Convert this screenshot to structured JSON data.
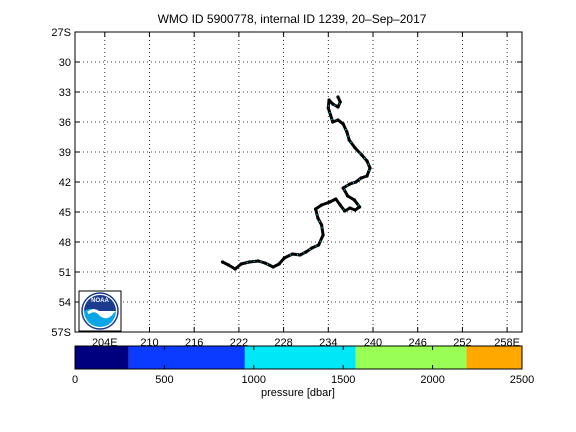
{
  "title": "WMO ID 5900778, internal ID 1239, 20–Sep–2017",
  "logo": {
    "text": "NOAA",
    "colors": {
      "ring": "#ffffff",
      "upper": "#1b3b8f",
      "lower": "#0aa6e6"
    }
  },
  "map": {
    "lon_range": [
      200,
      260
    ],
    "lat_range": [
      -57,
      -27
    ],
    "grid": true,
    "lon_ticks": [
      {
        "value": 204,
        "label": "204E"
      },
      {
        "value": 210,
        "label": "210"
      },
      {
        "value": 216,
        "label": "216"
      },
      {
        "value": 222,
        "label": "222"
      },
      {
        "value": 228,
        "label": "228"
      },
      {
        "value": 234,
        "label": "234"
      },
      {
        "value": 240,
        "label": "240"
      },
      {
        "value": 246,
        "label": "246"
      },
      {
        "value": 252,
        "label": "252"
      },
      {
        "value": 258,
        "label": "258E"
      }
    ],
    "lat_ticks": [
      {
        "value": -27,
        "label": "27S"
      },
      {
        "value": -30,
        "label": "30"
      },
      {
        "value": -33,
        "label": "33"
      },
      {
        "value": -36,
        "label": "36"
      },
      {
        "value": -39,
        "label": "39"
      },
      {
        "value": -42,
        "label": "42"
      },
      {
        "value": -45,
        "label": "45"
      },
      {
        "value": -48,
        "label": "48"
      },
      {
        "value": -51,
        "label": "51"
      },
      {
        "value": -54,
        "label": "54"
      },
      {
        "value": -57,
        "label": "57S"
      }
    ],
    "track": [
      [
        219.8,
        -50.0
      ],
      [
        220.6,
        -50.3
      ],
      [
        221.5,
        -50.7
      ],
      [
        222.3,
        -50.2
      ],
      [
        223.4,
        -50.0
      ],
      [
        224.6,
        -49.9
      ],
      [
        225.5,
        -50.1
      ],
      [
        226.6,
        -50.5
      ],
      [
        227.4,
        -50.2
      ],
      [
        228.1,
        -49.6
      ],
      [
        229.2,
        -49.2
      ],
      [
        230.2,
        -49.3
      ],
      [
        231.0,
        -49.0
      ],
      [
        231.8,
        -48.6
      ],
      [
        232.7,
        -48.3
      ],
      [
        233.3,
        -47.3
      ],
      [
        233.1,
        -46.3
      ],
      [
        232.6,
        -45.6
      ],
      [
        232.3,
        -44.7
      ],
      [
        233.1,
        -44.3
      ],
      [
        234.2,
        -44.0
      ],
      [
        235.0,
        -43.7
      ],
      [
        235.6,
        -44.3
      ],
      [
        236.2,
        -44.9
      ],
      [
        236.9,
        -44.6
      ],
      [
        237.6,
        -44.8
      ],
      [
        238.2,
        -44.5
      ],
      [
        237.5,
        -43.8
      ],
      [
        236.6,
        -43.4
      ],
      [
        236.0,
        -42.6
      ],
      [
        236.9,
        -42.2
      ],
      [
        237.7,
        -42.0
      ],
      [
        238.4,
        -41.6
      ],
      [
        239.2,
        -41.4
      ],
      [
        239.6,
        -40.6
      ],
      [
        239.2,
        -39.9
      ],
      [
        238.5,
        -39.3
      ],
      [
        237.6,
        -38.6
      ],
      [
        236.8,
        -37.8
      ],
      [
        236.5,
        -37.0
      ],
      [
        236.0,
        -36.2
      ],
      [
        235.3,
        -35.8
      ],
      [
        234.6,
        -36.0
      ],
      [
        234.3,
        -35.3
      ],
      [
        234.0,
        -34.6
      ],
      [
        234.1,
        -33.8
      ],
      [
        234.6,
        -34.2
      ],
      [
        235.3,
        -34.5
      ],
      [
        235.6,
        -34.0
      ],
      [
        235.3,
        -33.5
      ]
    ]
  },
  "colorbar": {
    "segments": [
      {
        "from": 0,
        "to": 300,
        "color": "#00007f"
      },
      {
        "from": 300,
        "to": 950,
        "color": "#0b3bff"
      },
      {
        "from": 950,
        "to": 1570,
        "color": "#00e8f8"
      },
      {
        "from": 1570,
        "to": 2190,
        "color": "#99ff55"
      },
      {
        "from": 2190,
        "to": 2500,
        "color": "#ffa800"
      }
    ],
    "ticks": [
      {
        "value": 0,
        "label": "0"
      },
      {
        "value": 500,
        "label": "500"
      },
      {
        "value": 1000,
        "label": "1000"
      },
      {
        "value": 1500,
        "label": "1500"
      },
      {
        "value": 2000,
        "label": "2000"
      },
      {
        "value": 2500,
        "label": "2500"
      }
    ],
    "xlabel": "pressure [dbar]"
  }
}
